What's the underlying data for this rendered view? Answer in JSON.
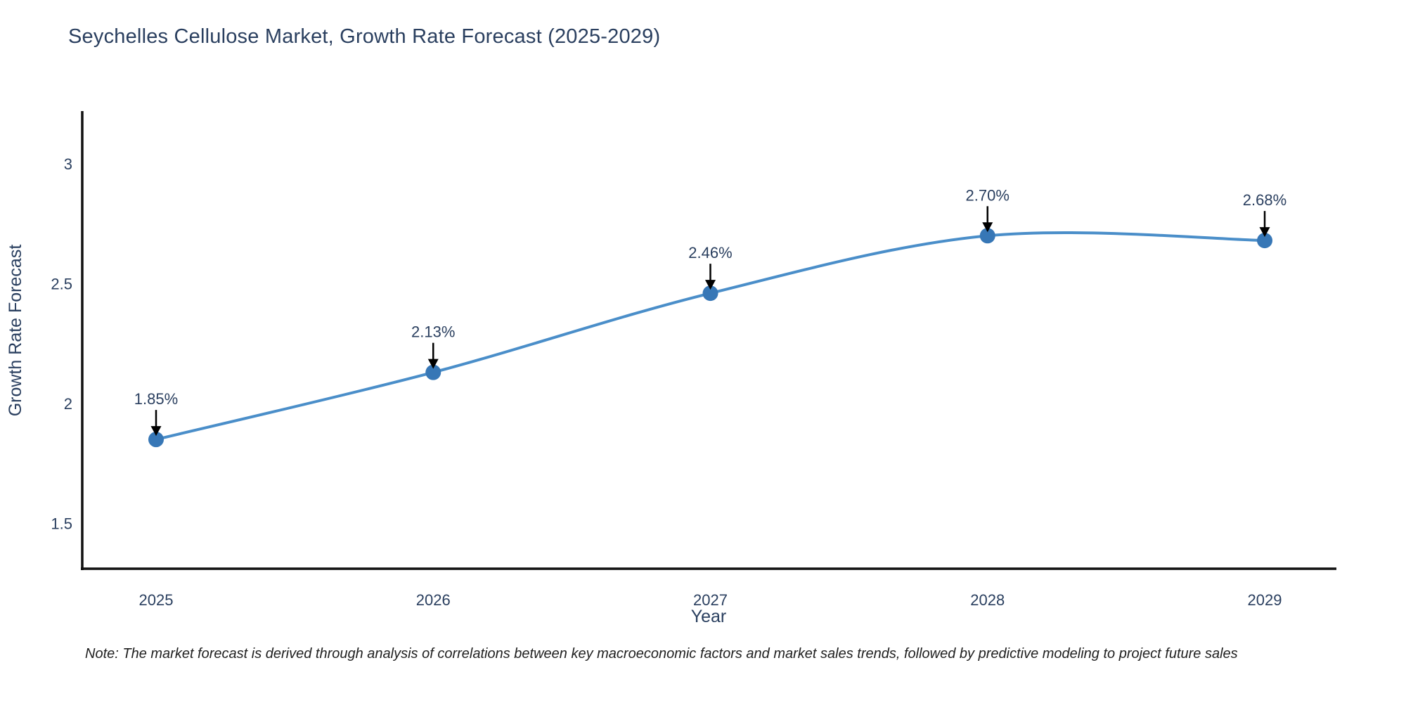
{
  "page": {
    "note": "Note: The market forecast is derived through analysis of correlations between key macroeconomic factors and market sales trends, followed by predictive modeling to project future sales"
  },
  "chart_data": {
    "type": "line",
    "title": "Seychelles Cellulose Market, Growth Rate Forecast (2025-2029)",
    "xlabel": "Year",
    "ylabel": "Growth Rate Forecast",
    "x": [
      2025,
      2026,
      2027,
      2028,
      2029
    ],
    "series": [
      {
        "name": "Growth Rate Forecast",
        "values": [
          1.85,
          2.13,
          2.46,
          2.7,
          2.68
        ]
      }
    ],
    "point_labels": [
      "1.85%",
      "2.13%",
      "2.46%",
      "2.70%",
      "2.68%"
    ],
    "xticks": {
      "values": [
        2025,
        2026,
        2027,
        2028,
        2029
      ],
      "labels": [
        "2025",
        "2026",
        "2027",
        "2028",
        "2029"
      ]
    },
    "yticks": {
      "values": [
        3,
        2.5,
        2,
        1.5
      ],
      "labels": [
        "3",
        "2.5",
        "2",
        "1.5"
      ]
    },
    "xlim": [
      2024.73,
      2029.27
    ],
    "ylim": [
      1.31,
      3.22
    ],
    "grid": false,
    "legend": "none",
    "line_shape": "spline",
    "marker": "circle",
    "colors": {
      "line": "#4a8ec9",
      "marker": "#3777b6",
      "axis": "#111111",
      "tick_text": "#2a3f5f",
      "axis_title_text": "#2a3f5f",
      "annotation_text": "#2a3f5f",
      "arrow": "#000000",
      "title_text": "#2a3f5f",
      "note_text": "#1f1f1f",
      "background": "#ffffff"
    }
  }
}
